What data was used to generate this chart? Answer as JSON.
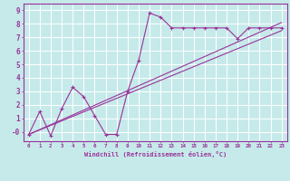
{
  "xlabel": "Windchill (Refroidissement éolien,°C)",
  "xlim": [
    -0.5,
    23.5
  ],
  "ylim": [
    -0.7,
    9.5
  ],
  "xticks": [
    0,
    1,
    2,
    3,
    4,
    5,
    6,
    7,
    8,
    9,
    10,
    11,
    12,
    13,
    14,
    15,
    16,
    17,
    18,
    19,
    20,
    21,
    22,
    23
  ],
  "yticks": [
    0,
    1,
    2,
    3,
    4,
    5,
    6,
    7,
    8,
    9
  ],
  "ytick_labels": [
    "-0",
    "1",
    "2",
    "3",
    "4",
    "5",
    "6",
    "7",
    "8",
    "9"
  ],
  "bg_color": "#c6eaea",
  "line_color": "#993399",
  "grid_color": "#ffffff",
  "data_x": [
    0,
    1,
    2,
    3,
    4,
    5,
    6,
    7,
    8,
    9,
    10,
    11,
    12,
    13,
    14,
    15,
    16,
    17,
    18,
    19,
    20,
    21,
    22,
    23
  ],
  "data_y": [
    -0.2,
    1.5,
    -0.3,
    1.7,
    3.3,
    2.6,
    1.2,
    -0.2,
    -0.2,
    3.0,
    5.3,
    8.8,
    8.5,
    7.7,
    7.7,
    7.7,
    7.7,
    7.7,
    7.7,
    6.9,
    7.7,
    7.7,
    7.7,
    7.7
  ],
  "line1_x": [
    0,
    23
  ],
  "line1_y": [
    -0.2,
    7.5
  ],
  "line2_x": [
    0,
    23
  ],
  "line2_y": [
    -0.2,
    8.1
  ]
}
